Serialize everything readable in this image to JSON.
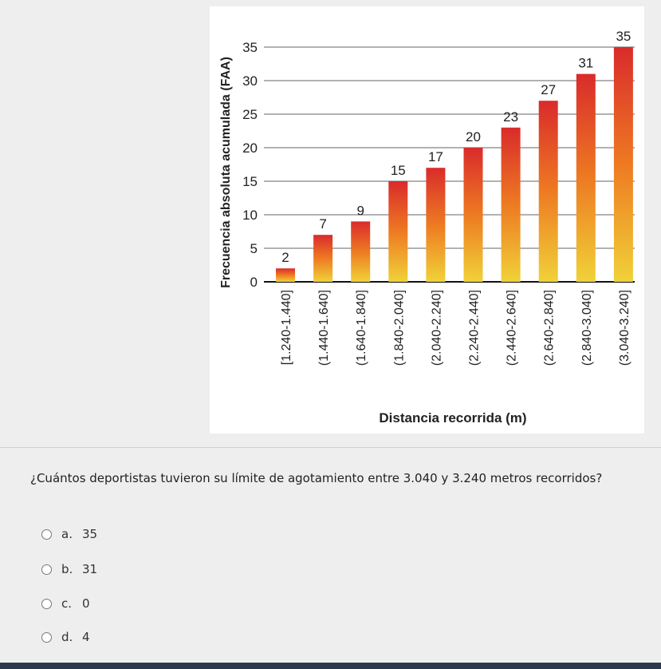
{
  "chart_data": {
    "type": "bar",
    "ylabel": "Frecuencia absoluta acumulada (FAA)",
    "xlabel": "Distancia recorrida (m)",
    "categories": [
      "[1.240-1.440]",
      "(1.440-1.640]",
      "(1.640-1.840]",
      "(1.840-2.040]",
      "(2.040-2.240]",
      "(2.240-2.440]",
      "(2.440-2.640]",
      "(2.640-2.840]",
      "(2.840-3.040]",
      "(3.040-3.240]"
    ],
    "values": [
      2,
      7,
      9,
      15,
      17,
      20,
      23,
      27,
      31,
      35
    ],
    "ylim": [
      0,
      35
    ],
    "yticks": [
      0,
      5,
      10,
      15,
      20,
      25,
      30,
      35
    ],
    "grid": true,
    "bar_gradient": {
      "top": "#d92b2b",
      "mid": "#ee7a22",
      "bottom": "#f0d238"
    }
  },
  "question": {
    "text": "¿Cuántos deportistas tuvieron su límite de agotamiento entre 3.040 y 3.240 metros recorridos?"
  },
  "options": [
    {
      "letter": "a.",
      "value": "35"
    },
    {
      "letter": "b.",
      "value": "31"
    },
    {
      "letter": "c.",
      "value": "0"
    },
    {
      "letter": "d.",
      "value": "4"
    }
  ]
}
